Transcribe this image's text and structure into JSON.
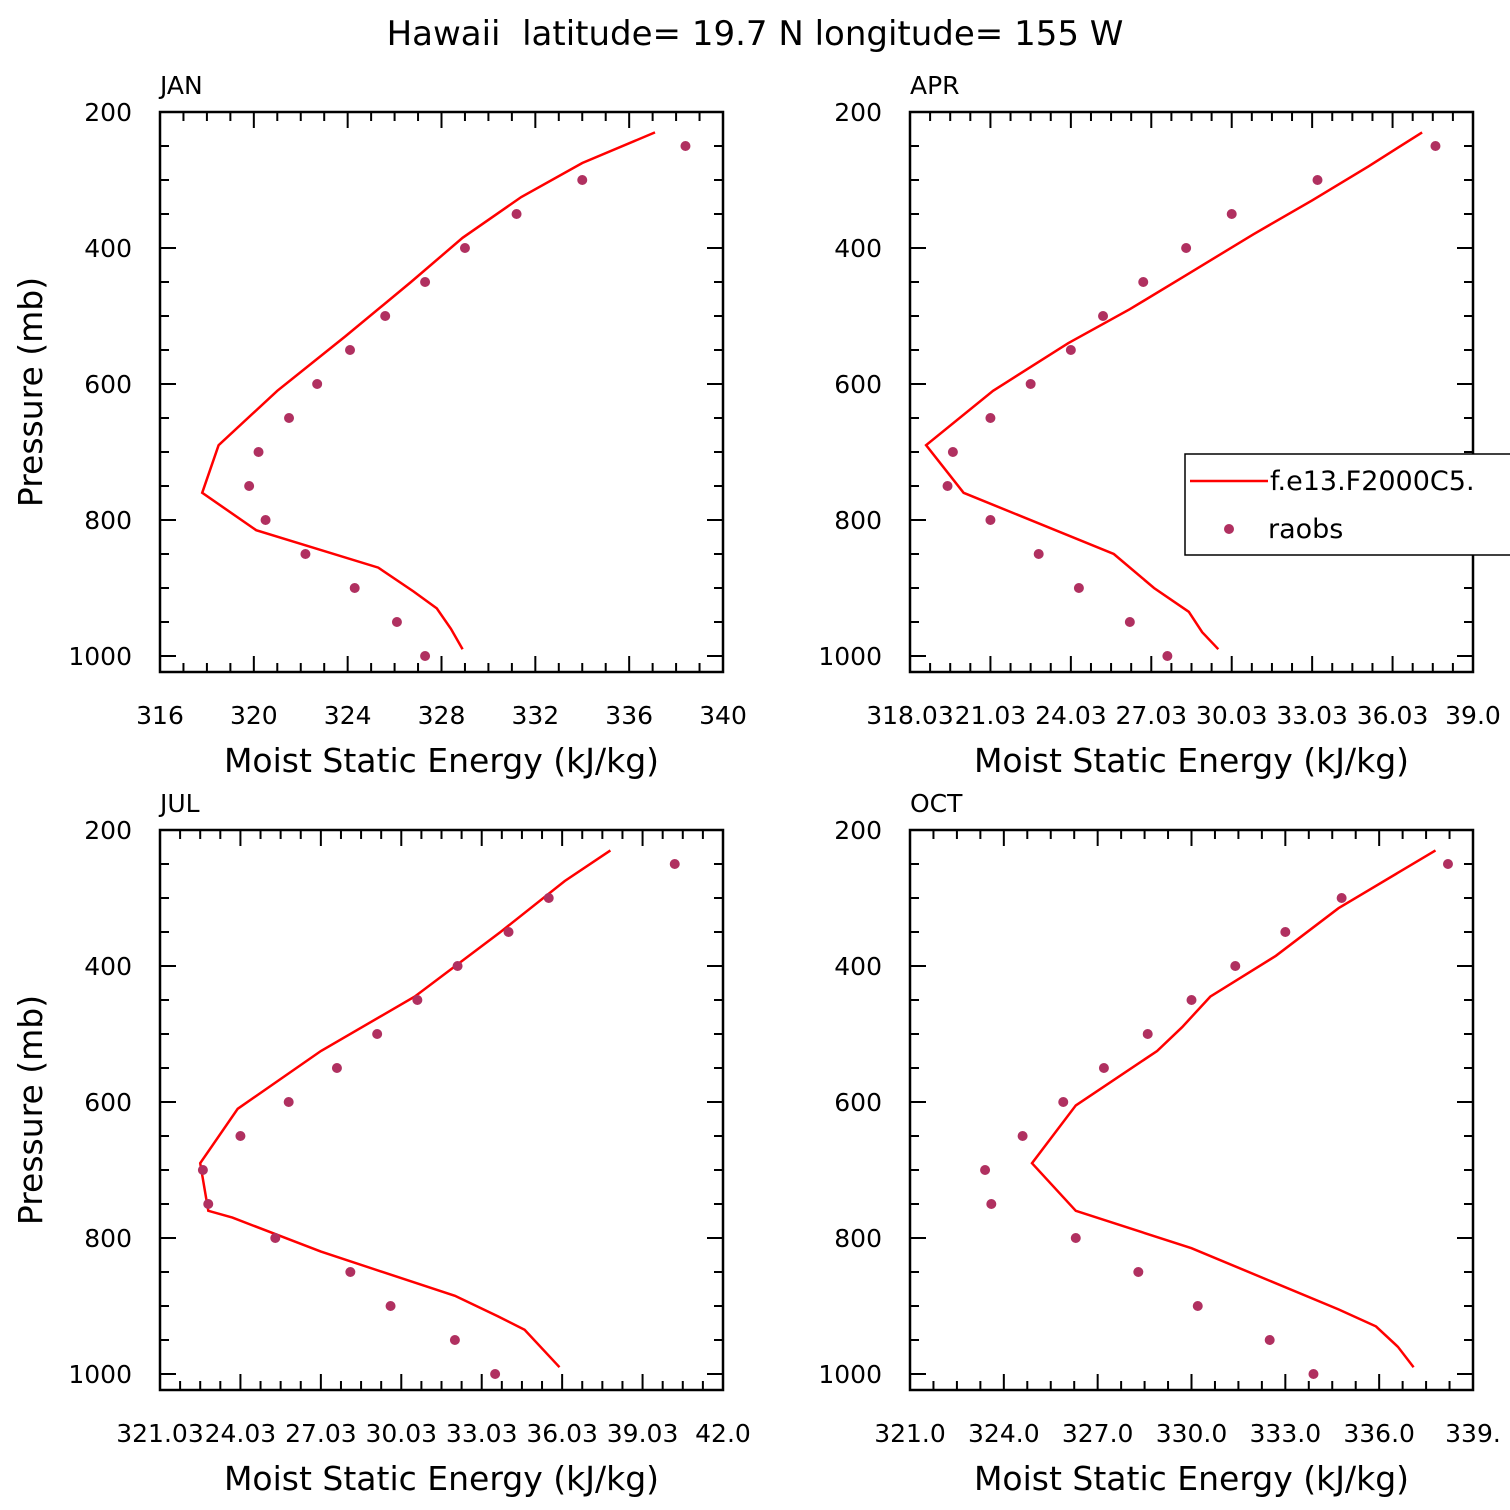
{
  "page_title": "Hawaii  latitude= 19.7 N longitude= 155 W",
  "legend": {
    "model_label": "f.e13.F2000C5.",
    "obs_label": "raobs"
  },
  "colors": {
    "model_line": "#ff0000",
    "obs_marker": "#b03060"
  },
  "chart_data": [
    {
      "type": "line",
      "panel": "JAN",
      "xlabel": "Moist Static Energy (kJ/kg)",
      "ylabel": "Pressure (mb)",
      "xlim": [
        316,
        340
      ],
      "ylim": [
        1000,
        200
      ],
      "xtick_values": [
        316,
        320,
        324,
        328,
        332,
        336,
        340
      ],
      "xtick_labels": [
        "316",
        "320",
        "324",
        "328",
        "332",
        "336",
        "340"
      ],
      "ytick_values": [
        200,
        400,
        600,
        800,
        1000
      ],
      "ytick_labels": [
        "200",
        "400",
        "600",
        "800",
        "1000"
      ],
      "series": [
        {
          "name": "f.e13.F2000C5.",
          "style": "line",
          "x": [
            337.1,
            334.0,
            331.4,
            328.9,
            326.7,
            323.9,
            321.0,
            318.5,
            317.8,
            320.1,
            325.3,
            326.8,
            327.8,
            328.4,
            328.9
          ],
          "y": [
            230,
            275,
            325,
            385,
            450,
            530,
            610,
            690,
            760,
            815,
            870,
            905,
            930,
            960,
            990
          ]
        },
        {
          "name": "raobs",
          "style": "marker",
          "x": [
            338.4,
            334.0,
            331.2,
            329.0,
            327.3,
            325.6,
            324.1,
            322.7,
            321.5,
            320.2,
            319.8,
            320.5,
            322.2,
            324.3,
            326.1,
            327.3
          ],
          "y": [
            250,
            300,
            350,
            400,
            450,
            500,
            550,
            600,
            650,
            700,
            750,
            800,
            850,
            900,
            950,
            1000
          ]
        }
      ]
    },
    {
      "type": "line",
      "panel": "APR",
      "xlabel": "Moist Static Energy (kJ/kg)",
      "ylabel": "",
      "xlim": [
        318.0,
        339.0
      ],
      "ylim": [
        1000,
        200
      ],
      "xtick_values": [
        318,
        321,
        324,
        327,
        330,
        333,
        336,
        339
      ],
      "xtick_labels": [
        "318.03",
        "21.03",
        "24.03",
        "27.03",
        "30.03",
        "33.03",
        "36.03",
        "39.0"
      ],
      "ytick_values": [
        200,
        400,
        600,
        800,
        1000
      ],
      "ytick_labels": [
        "200",
        "400",
        "600",
        "800",
        "1000"
      ],
      "series": [
        {
          "name": "f.e13.F2000C5.",
          "style": "line",
          "x": [
            337.1,
            335.1,
            333.0,
            330.8,
            328.3,
            326.2,
            323.9,
            321.1,
            318.6,
            320.0,
            325.6,
            327.1,
            328.4,
            328.9,
            329.5
          ],
          "y": [
            230,
            280,
            330,
            380,
            440,
            490,
            540,
            610,
            690,
            760,
            850,
            900,
            935,
            965,
            990
          ]
        },
        {
          "name": "raobs",
          "style": "marker",
          "x": [
            337.6,
            333.2,
            330.0,
            328.3,
            326.7,
            325.2,
            324.0,
            322.5,
            321.0,
            319.6,
            319.4,
            321.0,
            322.8,
            324.3,
            326.2,
            327.6
          ],
          "y": [
            250,
            300,
            350,
            400,
            450,
            500,
            550,
            600,
            650,
            700,
            750,
            800,
            850,
            900,
            950,
            1000
          ]
        }
      ]
    },
    {
      "type": "line",
      "panel": "JUL",
      "xlabel": "Moist Static Energy (kJ/kg)",
      "ylabel": "Pressure (mb)",
      "xlim": [
        321.0,
        342.0
      ],
      "ylim": [
        1000,
        200
      ],
      "xtick_values": [
        321,
        324,
        327,
        330,
        333,
        336,
        339,
        342
      ],
      "xtick_labels": [
        "321.03",
        "24.03",
        "27.03",
        "30.03",
        "33.03",
        "36.03",
        "39.03",
        "42.0"
      ],
      "ytick_values": [
        200,
        400,
        600,
        800,
        1000
      ],
      "ytick_labels": [
        "200",
        "400",
        "600",
        "800",
        "1000"
      ],
      "series": [
        {
          "name": "f.e13.F2000C5.",
          "style": "line",
          "x": [
            337.8,
            336.1,
            333.7,
            330.5,
            327.0,
            323.9,
            322.5,
            322.8,
            323.7,
            327.0,
            332.0,
            333.6,
            334.6,
            335.9
          ],
          "y": [
            230,
            275,
            350,
            445,
            525,
            610,
            690,
            760,
            770,
            820,
            885,
            915,
            935,
            990
          ]
        },
        {
          "name": "raobs",
          "style": "marker",
          "x": [
            340.2,
            335.5,
            334.0,
            332.1,
            330.6,
            329.1,
            327.6,
            325.8,
            324.0,
            322.6,
            322.8,
            325.3,
            328.1,
            329.6,
            332.0,
            333.5
          ],
          "y": [
            250,
            300,
            350,
            400,
            450,
            500,
            550,
            600,
            650,
            700,
            750,
            800,
            850,
            900,
            950,
            1000
          ]
        }
      ]
    },
    {
      "type": "line",
      "panel": "OCT",
      "xlabel": "Moist Static Energy (kJ/kg)",
      "ylabel": "",
      "xlim": [
        321.0,
        339.0
      ],
      "ylim": [
        1000,
        200
      ],
      "xtick_values": [
        321,
        324,
        327,
        330,
        333,
        336,
        339
      ],
      "xtick_labels": [
        "321.0",
        "324.0",
        "327.0",
        "330.0",
        "333.0",
        "336.0",
        "339."
      ],
      "ytick_values": [
        200,
        400,
        600,
        800,
        1000
      ],
      "ytick_labels": [
        "200",
        "400",
        "600",
        "800",
        "1000"
      ],
      "series": [
        {
          "name": "f.e13.F2000C5.",
          "style": "line",
          "x": [
            337.8,
            334.7,
            332.7,
            330.6,
            329.7,
            328.9,
            326.3,
            324.9,
            326.3,
            330.0,
            334.7,
            335.9,
            336.6,
            337.1
          ],
          "y": [
            230,
            315,
            385,
            445,
            490,
            525,
            605,
            690,
            760,
            815,
            905,
            930,
            960,
            990
          ]
        },
        {
          "name": "raobs",
          "style": "marker",
          "x": [
            338.2,
            334.8,
            333.0,
            331.4,
            330.0,
            328.6,
            327.2,
            325.9,
            324.6,
            323.4,
            323.6,
            326.3,
            328.3,
            330.2,
            332.5,
            333.9
          ],
          "y": [
            250,
            300,
            350,
            400,
            450,
            500,
            550,
            600,
            650,
            700,
            750,
            800,
            850,
            900,
            950,
            1000
          ]
        }
      ]
    }
  ]
}
